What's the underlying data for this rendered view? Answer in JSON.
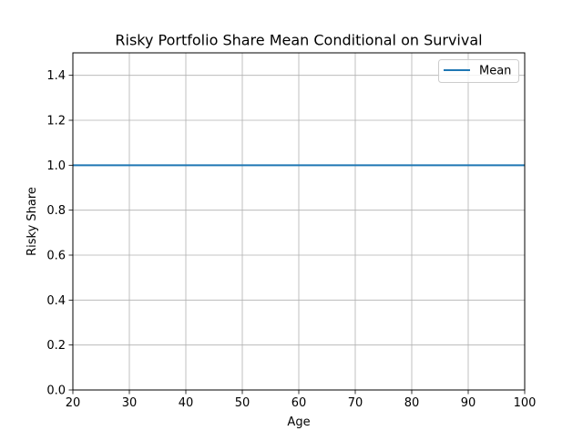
{
  "chart_data": {
    "type": "line",
    "title": "Risky Portfolio Share Mean Conditional on Survival",
    "xlabel": "Age",
    "ylabel": "Risky Share",
    "xlim": [
      20,
      100
    ],
    "ylim": [
      0,
      1.5
    ],
    "xticks": [
      20,
      30,
      40,
      50,
      60,
      70,
      80,
      90,
      100
    ],
    "yticks": [
      0.0,
      0.2,
      0.4,
      0.6,
      0.8,
      1.0,
      1.2,
      1.4
    ],
    "xtick_labels": [
      "20",
      "30",
      "40",
      "50",
      "60",
      "70",
      "80",
      "90",
      "100"
    ],
    "ytick_labels": [
      "0.0",
      "0.2",
      "0.4",
      "0.6",
      "0.8",
      "1.0",
      "1.2",
      "1.4"
    ],
    "grid": true,
    "legend_position": "top-right",
    "series": [
      {
        "name": "Mean",
        "color": "#1f77b4",
        "x": [
          20,
          100
        ],
        "y": [
          1.0,
          1.0
        ]
      }
    ]
  }
}
